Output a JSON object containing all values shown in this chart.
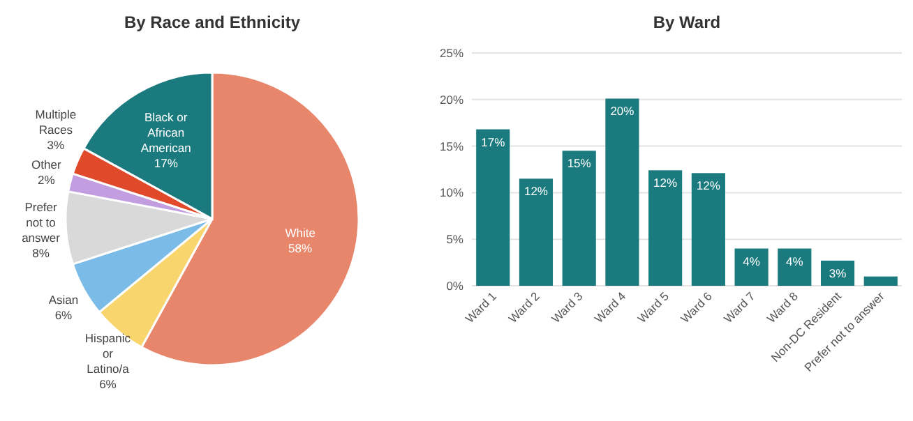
{
  "chart_data": [
    {
      "type": "pie",
      "title": "By Race and Ethnicity",
      "categories": [
        "White",
        "Hispanic or Latino/a",
        "Asian",
        "Prefer not to answer",
        "Other",
        "Multiple Races",
        "Black or African American"
      ],
      "values": [
        58,
        6,
        6,
        8,
        2,
        3,
        17
      ],
      "colors": [
        "#e8866c",
        "#f9d56e",
        "#7bbbe8",
        "#d9d9d9",
        "#c29de0",
        "#e04a2a",
        "#1a7a7e"
      ],
      "value_labels": [
        "58%",
        "6%",
        "6%",
        "8%",
        "2%",
        "3%",
        "17%"
      ]
    },
    {
      "type": "bar",
      "title": "By Ward",
      "categories": [
        "Ward 1",
        "Ward 2",
        "Ward 3",
        "Ward 4",
        "Ward 5",
        "Ward 6",
        "Ward 7",
        "Ward 8",
        "Non-DC Resident",
        "Prefer not to answer"
      ],
      "values": [
        16.8,
        11.5,
        14.5,
        20.1,
        12.4,
        12.1,
        4,
        4,
        2.7,
        1
      ],
      "value_labels": [
        "17%",
        "12%",
        "15%",
        "20%",
        "12%",
        "12%",
        "4%",
        "4%",
        "3%",
        null
      ],
      "color": "#1a7a7e",
      "ylim": [
        0,
        25
      ],
      "yticks": [
        {
          "value": 0,
          "label": "0%"
        },
        {
          "value": 5,
          "label": "5%"
        },
        {
          "value": 10,
          "label": "10%"
        },
        {
          "value": 15,
          "label": "15%"
        },
        {
          "value": 20,
          "label": "20%"
        },
        {
          "value": 25,
          "label": "25%"
        }
      ],
      "grid": "y"
    }
  ]
}
